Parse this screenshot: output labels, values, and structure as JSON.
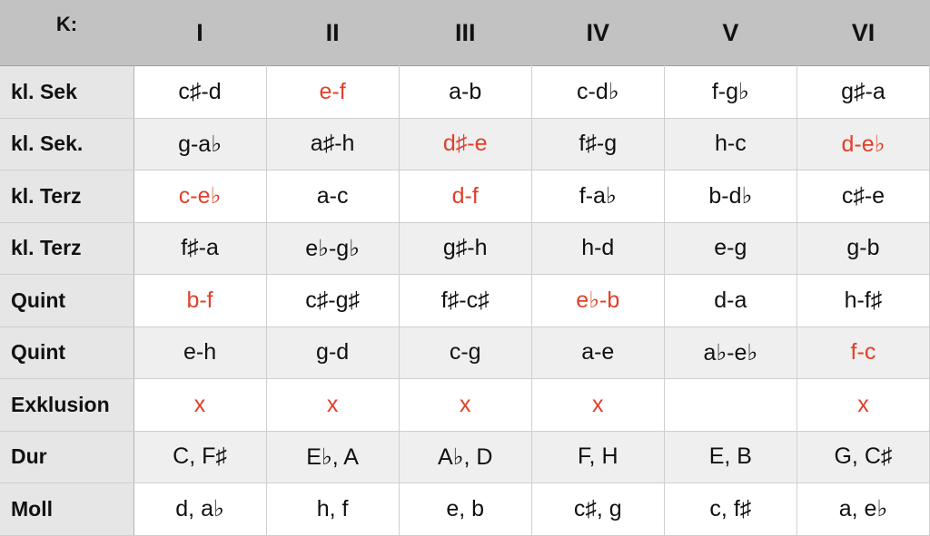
{
  "header": {
    "corner": "K:",
    "columns": [
      "I",
      "II",
      "III",
      "IV",
      "V",
      "VI"
    ]
  },
  "highlight_color": "#e0402a",
  "rows": [
    {
      "label": "kl. Sek",
      "cells": [
        {
          "t": "c♯-d"
        },
        {
          "t": "e-f",
          "red": true
        },
        {
          "t": "a-b"
        },
        {
          "t": "c-d♭"
        },
        {
          "t": "f-g♭"
        },
        {
          "t": "g♯-a"
        }
      ]
    },
    {
      "label": "kl. Sek.",
      "cells": [
        {
          "t": "g-a♭"
        },
        {
          "t": "a♯-h"
        },
        {
          "t": "d♯-e",
          "red": true
        },
        {
          "t": "f♯-g"
        },
        {
          "t": "h-c"
        },
        {
          "t": "d-e♭",
          "red": true
        }
      ]
    },
    {
      "label": "kl. Terz",
      "cells": [
        {
          "t": "c-e♭",
          "red": true
        },
        {
          "t": "a-c"
        },
        {
          "t": "d-f",
          "red": true
        },
        {
          "t": "f-a♭"
        },
        {
          "t": "b-d♭"
        },
        {
          "t": "c♯-e"
        }
      ]
    },
    {
      "label": "kl. Terz",
      "cells": [
        {
          "t": "f♯-a"
        },
        {
          "t": "e♭-g♭"
        },
        {
          "t": "g♯-h"
        },
        {
          "t": "h-d"
        },
        {
          "t": "e-g"
        },
        {
          "t": "g-b"
        }
      ]
    },
    {
      "label": "Quint",
      "cells": [
        {
          "t": "b-f",
          "red": true
        },
        {
          "t": "c♯-g♯"
        },
        {
          "t": "f♯-c♯"
        },
        {
          "t": "e♭-b",
          "red": true
        },
        {
          "t": "d-a"
        },
        {
          "t": "h-f♯"
        }
      ]
    },
    {
      "label": "Quint",
      "cells": [
        {
          "t": "e-h"
        },
        {
          "t": "g-d"
        },
        {
          "t": "c-g"
        },
        {
          "t": "a-e"
        },
        {
          "t": "a♭-e♭"
        },
        {
          "t": "f-c",
          "red": true
        }
      ]
    },
    {
      "label": "Exklusion",
      "cells": [
        {
          "t": "x",
          "red": true
        },
        {
          "t": "x",
          "red": true
        },
        {
          "t": "x",
          "red": true
        },
        {
          "t": "x",
          "red": true
        },
        {
          "t": ""
        },
        {
          "t": "x",
          "red": true
        }
      ]
    },
    {
      "label": "Dur",
      "cells": [
        {
          "t": "C, F♯"
        },
        {
          "t": "E♭, A"
        },
        {
          "t": "A♭, D"
        },
        {
          "t": "F, H"
        },
        {
          "t": "E, B"
        },
        {
          "t": "G, C♯"
        }
      ]
    },
    {
      "label": "Moll",
      "cells": [
        {
          "t": "d, a♭"
        },
        {
          "t": "h, f"
        },
        {
          "t": "e, b"
        },
        {
          "t": "c♯, g"
        },
        {
          "t": "c, f♯"
        },
        {
          "t": "a, e♭"
        }
      ]
    }
  ]
}
